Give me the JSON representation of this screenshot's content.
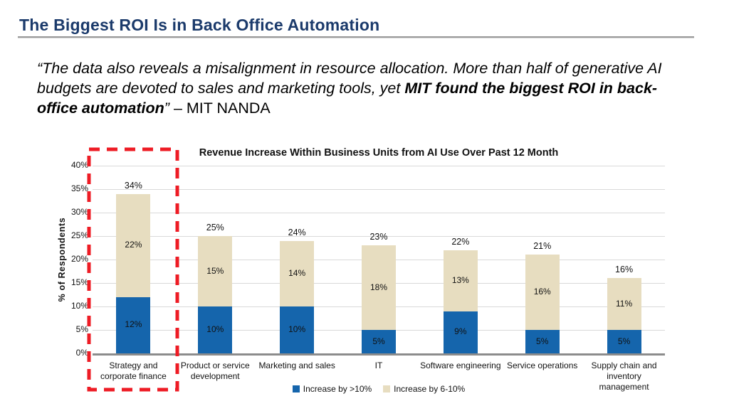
{
  "slide": {
    "title": "The Biggest ROI Is in Back Office Automation",
    "quote": {
      "opening": "“The data also reveals a misalignment in resource allocation. More than half of generative AI budgets are devoted to sales and marketing tools, yet ",
      "emphasis": "MIT found the biggest ROI in back-office automation",
      "closing": "”",
      "attribution": " – MIT NANDA"
    }
  },
  "colors": {
    "title_navy": "#1B3A6B",
    "bar_blue": "#1565AC",
    "bar_tan": "#E7DDC0",
    "highlight_red": "#EE1C25",
    "gridline_gray": "#D9D9D9",
    "axis_gray": "#8C8C8C",
    "rule_gray": "#9A9A9A"
  },
  "chart_data": {
    "type": "bar",
    "stacked": true,
    "title": "Revenue Increase Within Business Units from AI Use Over Past 12 Month",
    "ylabel": "% of Respondents",
    "xlabel": "",
    "ylim": [
      0,
      40
    ],
    "ytick_step": 5,
    "ytick_labels": [
      "0%",
      "5%",
      "10%",
      "15%",
      "20%",
      "25%",
      "30%",
      "35%",
      "40%"
    ],
    "grid": true,
    "legend_position": "bottom",
    "categories": [
      "Strategy and\ncorporate finance",
      "Product or service\ndevelopment",
      "Marketing and sales",
      "IT",
      "Software engineering",
      "Service operations",
      "Supply chain and\ninventory\nmanagement"
    ],
    "series": [
      {
        "name": "Increase by >10%",
        "color": "#1565AC",
        "values": [
          12,
          10,
          10,
          5,
          9,
          5,
          5
        ],
        "labels": [
          "12%",
          "10%",
          "10%",
          "5%",
          "9%",
          "5%",
          "5%"
        ]
      },
      {
        "name": "Increase by 6-10%",
        "color": "#E7DDC0",
        "values": [
          22,
          15,
          14,
          18,
          13,
          16,
          11
        ],
        "labels": [
          "22%",
          "15%",
          "14%",
          "18%",
          "13%",
          "16%",
          "11%"
        ]
      }
    ],
    "totals": [
      "34%",
      "25%",
      "24%",
      "23%",
      "22%",
      "21%",
      "16%"
    ],
    "highlight": {
      "category_index": 0,
      "style": "red-dashed-box",
      "color": "#EE1C25"
    }
  }
}
